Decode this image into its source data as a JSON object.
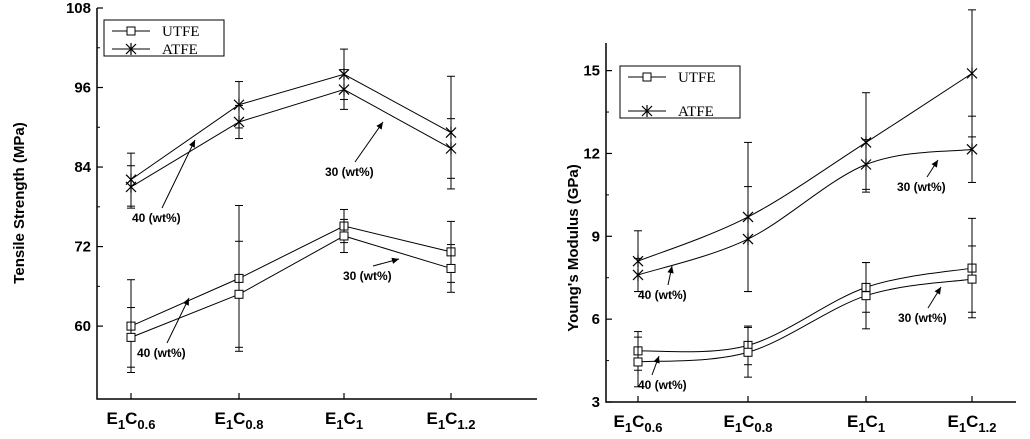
{
  "chart_data": [
    {
      "type": "line",
      "ylabel": "Tensile Strength (MPa)",
      "xlabel": "",
      "categories": [
        "E1C0.6",
        "E1C0.8",
        "E1C1",
        "E1C1.2"
      ],
      "category_parts": [
        {
          "main": "E",
          "sub1": "1",
          "mid": "C",
          "sub2": "0.6"
        },
        {
          "main": "E",
          "sub1": "1",
          "mid": "C",
          "sub2": "0.8"
        },
        {
          "main": "E",
          "sub1": "1",
          "mid": "C",
          "sub2": "1"
        },
        {
          "main": "E",
          "sub1": "1",
          "mid": "C",
          "sub2": "1.2"
        }
      ],
      "ylim": [
        49,
        108
      ],
      "yticks": [
        60,
        72,
        84,
        96,
        108
      ],
      "legend_position": "top-left",
      "legend": [
        {
          "label": "UTFE",
          "marker": "square"
        },
        {
          "label": "ATFE",
          "marker": "asterisk"
        }
      ],
      "series": [
        {
          "name": "UTFE",
          "group": "40 (wt%)",
          "marker": "square",
          "values": [
            60.0,
            67.2,
            75.1,
            71.2
          ],
          "errors": [
            7.0,
            11.0,
            2.5,
            4.6
          ]
        },
        {
          "name": "UTFE",
          "group": "30 (wt%)",
          "marker": "square",
          "values": [
            58.3,
            64.8,
            73.6,
            68.7
          ],
          "errors": [
            4.5,
            8.0,
            2.5,
            3.6
          ]
        },
        {
          "name": "ATFE",
          "group": "40 (wt%)",
          "marker": "asterisk",
          "values": [
            82.1,
            93.4,
            98.0,
            89.2
          ],
          "errors": [
            4.0,
            3.5,
            3.8,
            8.5
          ]
        },
        {
          "name": "ATFE",
          "group": "30 (wt%)",
          "marker": "asterisk",
          "values": [
            81.0,
            90.8,
            95.7,
            86.8
          ],
          "errors": [
            3.2,
            2.5,
            3.0,
            4.5
          ]
        }
      ],
      "annotations": [
        "40 (wt%)",
        "30 (wt%)",
        "40 (wt%)",
        "30 (wt%)"
      ]
    },
    {
      "type": "line",
      "ylabel": "Young's Modulus (GPa)",
      "xlabel": "",
      "categories": [
        "E1C0.6",
        "E1C0.8",
        "E1C1",
        "E1C1.2"
      ],
      "category_parts": [
        {
          "main": "E",
          "sub1": "1",
          "mid": "C",
          "sub2": "0.6"
        },
        {
          "main": "E",
          "sub1": "1",
          "mid": "C",
          "sub2": "0.8"
        },
        {
          "main": "E",
          "sub1": "1",
          "mid": "C",
          "sub2": "1"
        },
        {
          "main": "E",
          "sub1": "1",
          "mid": "C",
          "sub2": "1.2"
        }
      ],
      "ylim": [
        3,
        16
      ],
      "yticks": [
        3,
        6,
        9,
        12,
        15
      ],
      "legend_position": "top-left",
      "legend": [
        {
          "label": "UTFE",
          "marker": "square"
        },
        {
          "label": "ATFE",
          "marker": "asterisk"
        }
      ],
      "series": [
        {
          "name": "UTFE",
          "group": "40 (wt%)",
          "marker": "square",
          "values": [
            4.85,
            5.05,
            7.15,
            7.85
          ],
          "errors": [
            0.7,
            0.7,
            0.9,
            1.8
          ]
        },
        {
          "name": "UTFE",
          "group": "30 (wt%)",
          "marker": "square",
          "values": [
            4.45,
            4.8,
            6.85,
            7.45
          ],
          "errors": [
            0.9,
            0.9,
            1.2,
            1.2
          ]
        },
        {
          "name": "ATFE",
          "group": "40 (wt%)",
          "marker": "asterisk",
          "values": [
            8.1,
            9.7,
            12.4,
            14.9
          ],
          "errors": [
            1.1,
            2.7,
            1.8,
            2.3
          ]
        },
        {
          "name": "ATFE",
          "group": "30 (wt%)",
          "marker": "asterisk",
          "values": [
            7.6,
            8.9,
            11.6,
            12.15
          ],
          "errors": [
            0.6,
            1.9,
            0.9,
            1.2
          ]
        }
      ],
      "annotations": [
        "40 (wt%)",
        "30 (wt%)",
        "40 (wt%)",
        "30 (wt%)"
      ]
    }
  ]
}
